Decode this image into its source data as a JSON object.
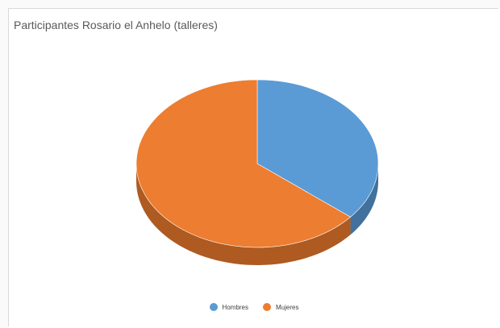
{
  "chart_data": {
    "type": "pie",
    "title": "Participantes Rosario el Anhelo  (talleres)",
    "categories": [
      "Hombres",
      "Mujeres"
    ],
    "values": [
      36,
      64
    ],
    "colors": [
      "#5B9BD5",
      "#ED7D31"
    ],
    "side_colors": [
      "#41719C",
      "#AE5A21"
    ],
    "legend_position": "bottom",
    "style": "3d"
  }
}
